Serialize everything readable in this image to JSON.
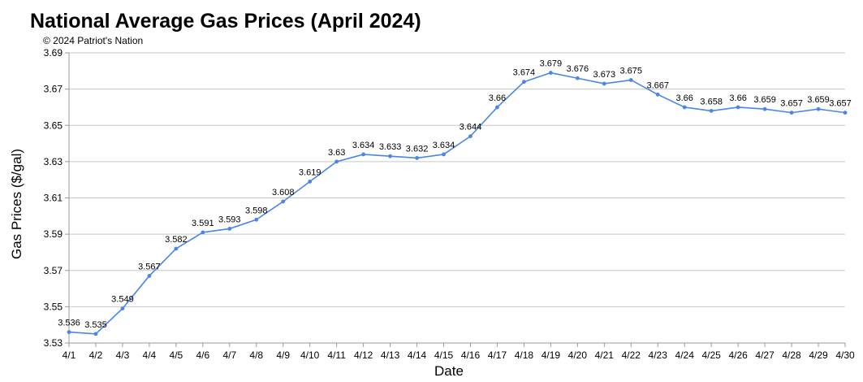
{
  "chart_data": {
    "type": "line",
    "title": "National Average Gas Prices (April 2024)",
    "subtitle": "© 2024 Patriot's Nation",
    "xlabel": "Date",
    "ylabel": "Gas Prices ($/gal)",
    "ylim": [
      3.53,
      3.69
    ],
    "yticks": [
      "3.53",
      "3.55",
      "3.57",
      "3.59",
      "3.61",
      "3.63",
      "3.65",
      "3.67",
      "3.69"
    ],
    "grid": true,
    "legend": "none",
    "line_color": "#4a86e8",
    "categories": [
      "4/1",
      "4/2",
      "4/3",
      "4/4",
      "4/5",
      "4/6",
      "4/7",
      "4/8",
      "4/9",
      "4/10",
      "4/11",
      "4/12",
      "4/13",
      "4/14",
      "4/15",
      "4/16",
      "4/17",
      "4/18",
      "4/19",
      "4/20",
      "4/21",
      "4/22",
      "4/23",
      "4/24",
      "4/25",
      "4/26",
      "4/27",
      "4/28",
      "4/29",
      "4/30"
    ],
    "values": [
      3.536,
      3.535,
      3.549,
      3.567,
      3.582,
      3.591,
      3.593,
      3.598,
      3.608,
      3.619,
      3.63,
      3.634,
      3.633,
      3.632,
      3.634,
      3.644,
      3.66,
      3.674,
      3.679,
      3.676,
      3.673,
      3.675,
      3.667,
      3.66,
      3.658,
      3.66,
      3.659,
      3.657,
      3.659,
      3.657
    ]
  }
}
